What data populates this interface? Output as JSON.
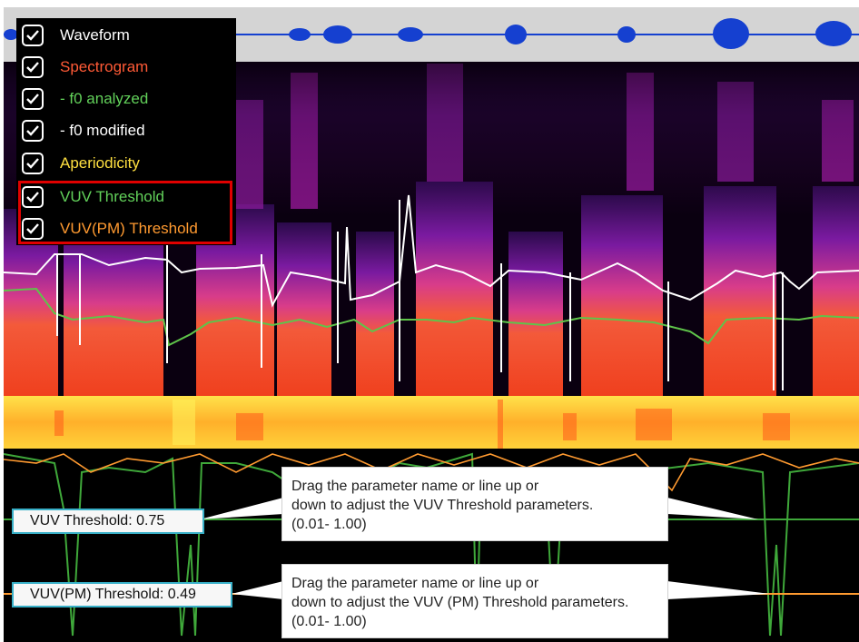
{
  "legend": {
    "items": [
      {
        "label": "Waveform",
        "checked": true,
        "color": "#ffffff"
      },
      {
        "label": "Spectrogram",
        "checked": true,
        "color": "#ff5a36"
      },
      {
        "label": "- f0 analyzed",
        "checked": true,
        "color": "#62d15a"
      },
      {
        "label": "- f0 modified",
        "checked": true,
        "color": "#ffffff"
      },
      {
        "label": "Aperiodicity",
        "checked": true,
        "color": "#ffe040"
      },
      {
        "label": "VUV Threshold",
        "checked": true,
        "color": "#62d15a"
      },
      {
        "label": "VUV(PM) Threshold",
        "checked": true,
        "color": "#ff9a30"
      }
    ],
    "highlight_color": "#e00000"
  },
  "params": {
    "vuv": {
      "label": "VUV Threshold: 0.75",
      "value": 0.75,
      "line_color": "#3fa83a"
    },
    "vuv_pm": {
      "label": "VUV(PM) Threshold: 0.49",
      "value": 0.49,
      "line_color": "#ff9a30"
    }
  },
  "callouts": {
    "vuv": {
      "line1": "Drag the parameter name or line up or",
      "line2": "down to adjust the VUV Threshold parameters.",
      "line3": "(0.01- 1.00)"
    },
    "vuv_pm": {
      "line1": "Drag the parameter name or line up or",
      "line2": "down to adjust the VUV (PM) Threshold parameters.",
      "line3": "(0.01- 1.00)"
    }
  },
  "colors": {
    "waveform_bg": "#d4d4d4",
    "waveform": "#1540d0",
    "spectrogram_bg": "#0a0010",
    "aperiodicity": "#ffd23a",
    "label_border": "#38b0c8"
  }
}
